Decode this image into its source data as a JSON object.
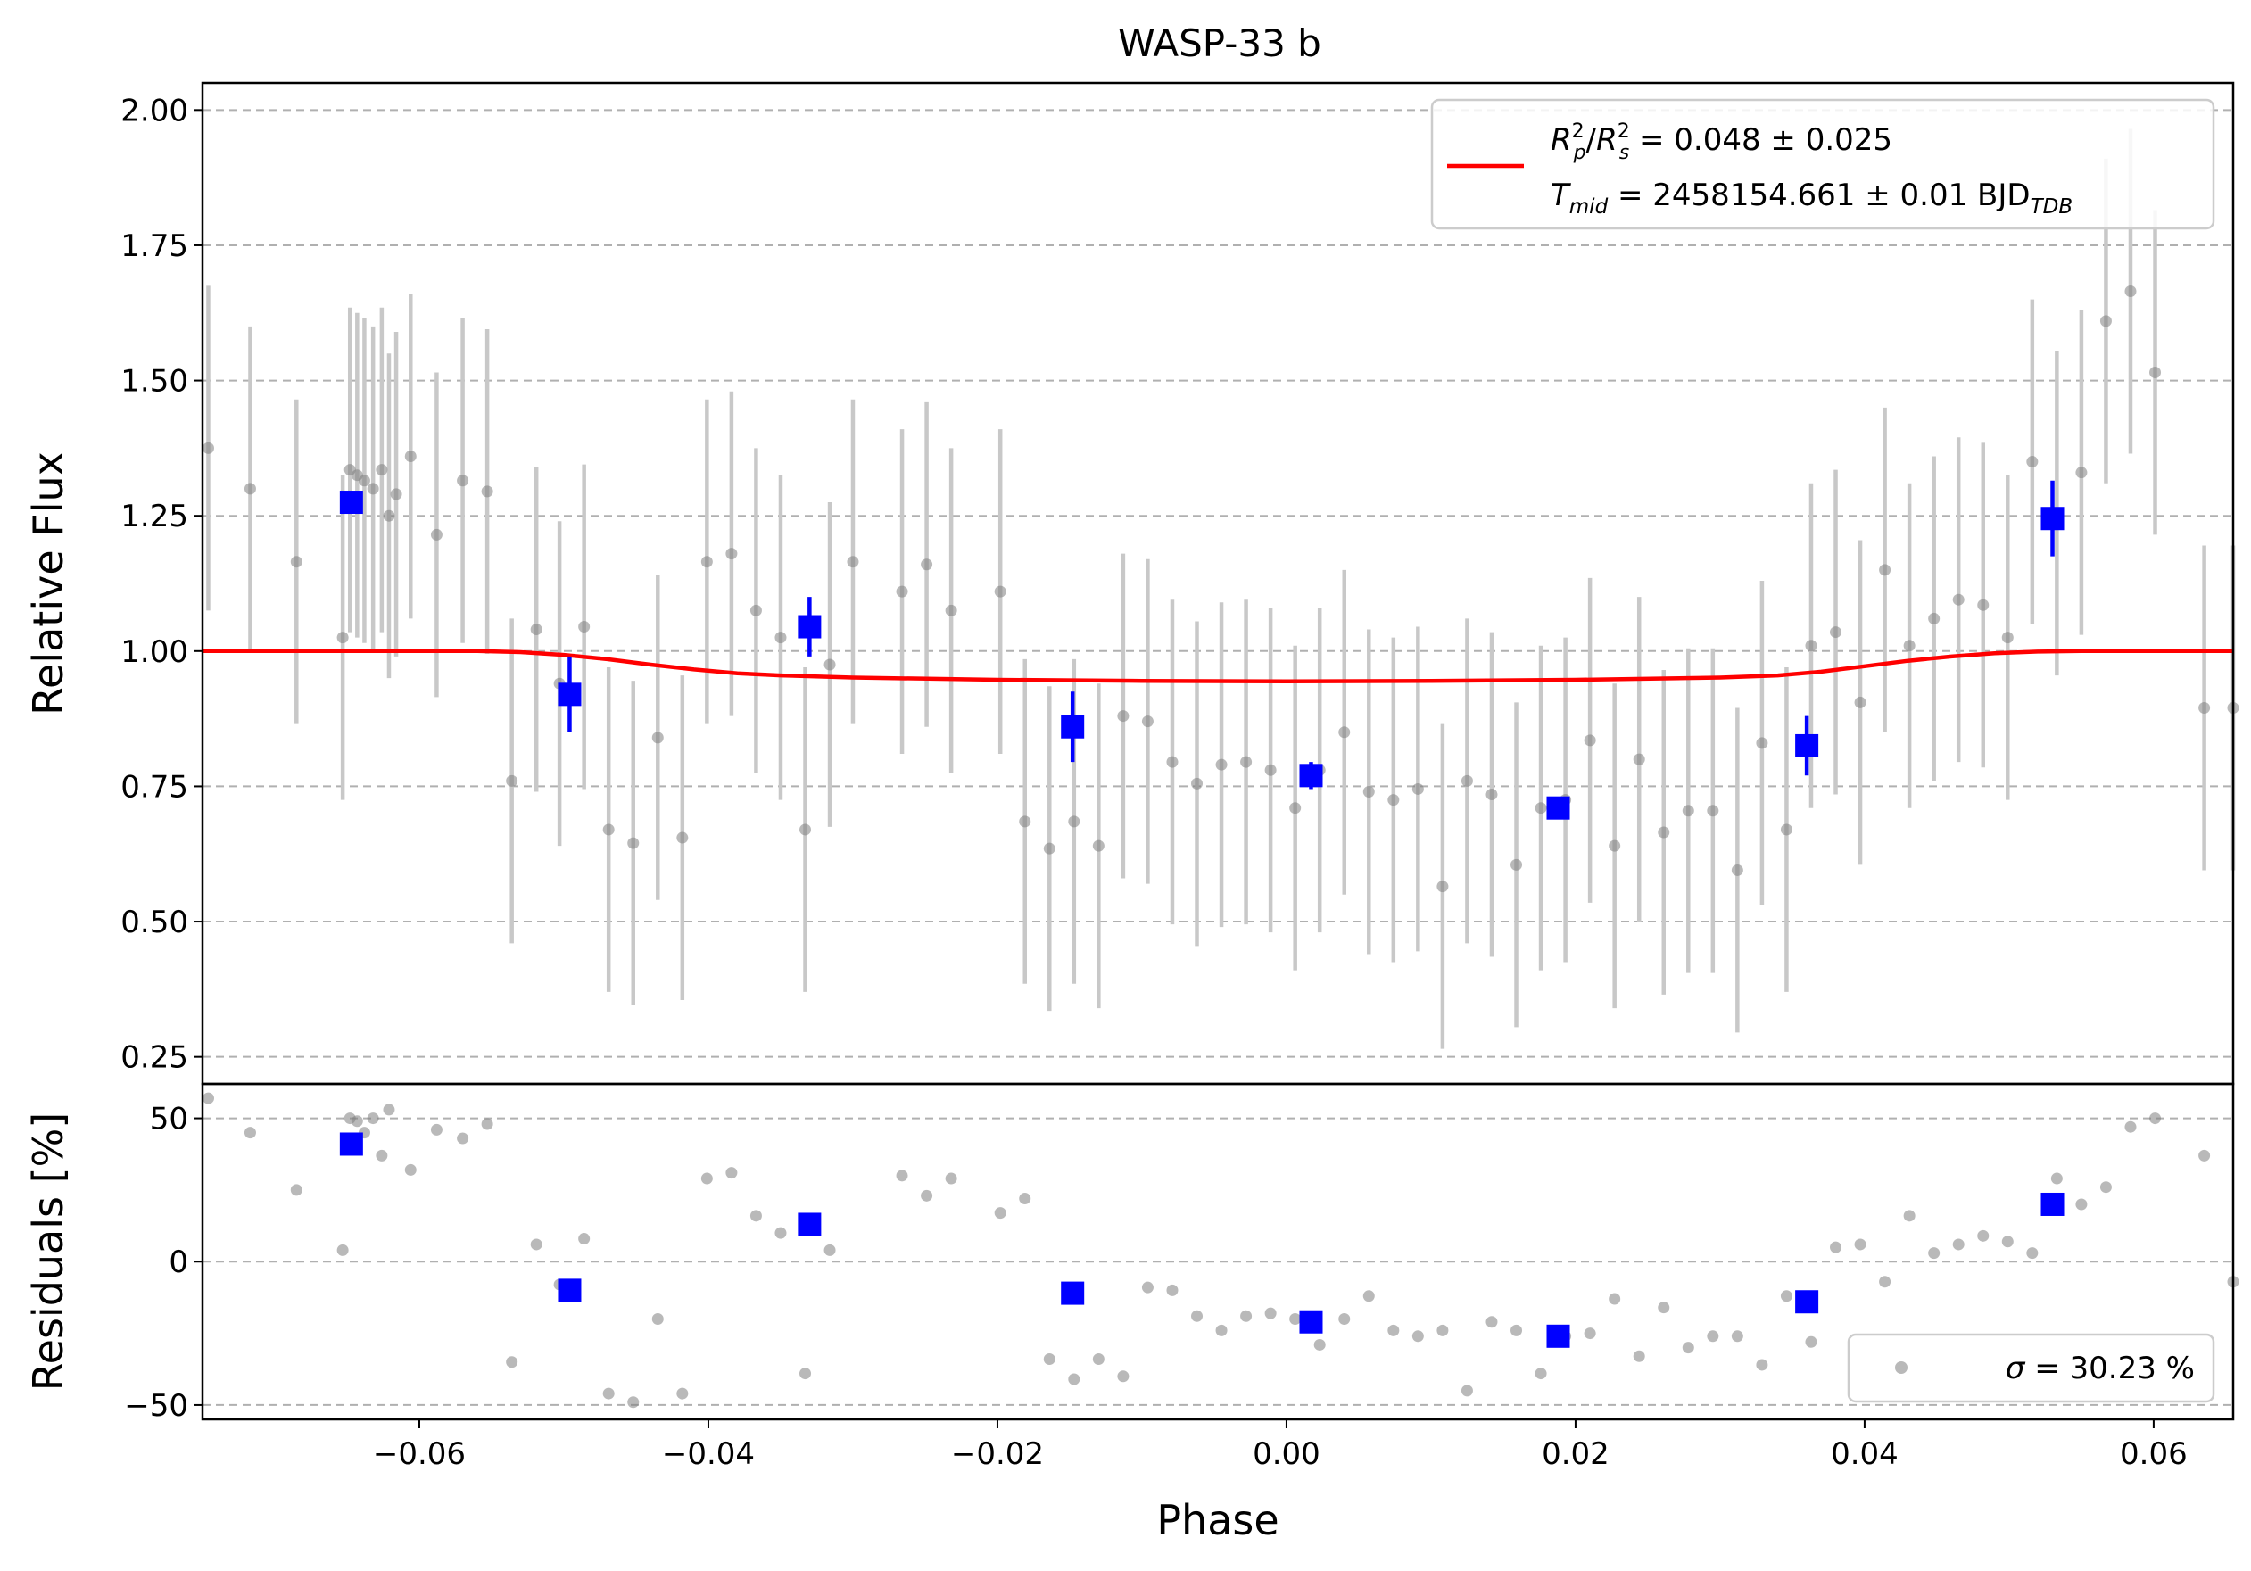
{
  "chart_data": [
    {
      "type": "scatter",
      "panel": "main",
      "title": "WASP-33 b",
      "xlabel": "",
      "ylabel": "Relative Flux",
      "xlim": [
        -0.075,
        0.0655
      ],
      "ylim": [
        0.2,
        2.05
      ],
      "grid": "y-dashed",
      "yticks": [
        0.25,
        0.5,
        0.75,
        1.0,
        1.25,
        1.5,
        1.75,
        2.0
      ],
      "ytick_labels": [
        "0.25",
        "0.50",
        "0.75",
        "1.00",
        "1.25",
        "1.50",
        "1.75",
        "2.00"
      ],
      "legend": {
        "position": "top-right",
        "line1": "R²p/R²s = 0.048 ± 0.025",
        "line2": "Tmid = 2458154.661 ± 0.01 BJDTDB",
        "line1_parts": {
          "r": "R",
          "p": "p",
          "sq": "2",
          "s": "s",
          "rest": " = 0.048 ± 0.025"
        },
        "line2_parts": {
          "t": "T",
          "mid": "mid",
          "rest": " = 2458154.661 ± 0.01 BJD",
          "tdb": "TDB"
        }
      },
      "colors": {
        "raw": "#808080",
        "errbar": "#c8c8c8",
        "binned": "#0000ff",
        "model": "#ff0000",
        "grid": "#b0b0b0"
      },
      "raw": {
        "x": [
          -0.0746,
          -0.0717,
          -0.0685,
          -0.0653,
          -0.0648,
          -0.0643,
          -0.0638,
          -0.0632,
          -0.0626,
          -0.0621,
          -0.0616,
          -0.0606,
          -0.0588,
          -0.057,
          -0.0553,
          -0.0536,
          -0.0519,
          -0.0503,
          -0.0486,
          -0.0469,
          -0.0452,
          -0.0435,
          -0.0418,
          -0.0401,
          -0.0384,
          -0.0367,
          -0.035,
          -0.0333,
          -0.0316,
          -0.03,
          -0.0266,
          -0.0249,
          -0.0232,
          -0.0198,
          -0.0181,
          -0.0164,
          -0.0147,
          -0.013,
          -0.0113,
          -0.0096,
          -0.0079,
          -0.0062,
          -0.0045,
          -0.0028,
          -0.0011,
          0.0006,
          0.0023,
          0.004,
          0.0057,
          0.0074,
          0.0091,
          0.0108,
          0.0125,
          0.0142,
          0.0159,
          0.0176,
          0.0193,
          0.021,
          0.0227,
          0.0244,
          0.0261,
          0.0278,
          0.0295,
          0.0312,
          0.0329,
          0.0346,
          0.0363,
          0.038,
          0.0397,
          0.0414,
          0.0431,
          0.0448,
          0.0465,
          0.0482,
          0.0499,
          0.0516,
          0.0533,
          0.055,
          0.0567,
          0.0584,
          0.0601,
          0.0635,
          0.0655
        ],
        "y": [
          1.375,
          1.3,
          1.165,
          1.025,
          1.335,
          1.325,
          1.315,
          1.3,
          1.335,
          1.25,
          1.29,
          1.36,
          1.215,
          1.315,
          1.295,
          0.76,
          1.04,
          0.94,
          1.045,
          0.67,
          0.645,
          0.84,
          0.655,
          1.165,
          1.18,
          1.075,
          1.025,
          0.67,
          0.975,
          1.165,
          1.11,
          1.16,
          1.075,
          1.11,
          0.685,
          0.635,
          0.685,
          0.64,
          0.88,
          0.87,
          0.795,
          0.755,
          0.79,
          0.795,
          0.78,
          0.71,
          0.78,
          0.85,
          0.74,
          0.725,
          0.745,
          0.565,
          0.76,
          0.735,
          0.605,
          0.71,
          0.725,
          0.835,
          0.64,
          0.8,
          0.665,
          0.705,
          0.705,
          0.595,
          0.83,
          0.67,
          1.01,
          1.035,
          0.905,
          1.15,
          1.01,
          1.06,
          1.095,
          1.085,
          1.025,
          1.35,
          1.255,
          1.33,
          1.61,
          1.665,
          1.515,
          0.895,
          0.895
        ],
        "err": [
          0.3,
          0.3,
          0.3,
          0.3,
          0.3,
          0.3,
          0.3,
          0.3,
          0.3,
          0.3,
          0.3,
          0.3,
          0.3,
          0.3,
          0.3,
          0.3,
          0.3,
          0.3,
          0.3,
          0.3,
          0.3,
          0.3,
          0.3,
          0.3,
          0.3,
          0.3,
          0.3,
          0.3,
          0.3,
          0.3,
          0.3,
          0.3,
          0.3,
          0.3,
          0.3,
          0.3,
          0.3,
          0.3,
          0.3,
          0.3,
          0.3,
          0.3,
          0.3,
          0.3,
          0.3,
          0.3,
          0.3,
          0.3,
          0.3,
          0.3,
          0.3,
          0.3,
          0.3,
          0.3,
          0.3,
          0.3,
          0.3,
          0.3,
          0.3,
          0.3,
          0.3,
          0.3,
          0.3,
          0.3,
          0.3,
          0.3,
          0.3,
          0.3,
          0.3,
          0.3,
          0.3,
          0.3,
          0.3,
          0.3,
          0.3,
          0.3,
          0.3,
          0.3,
          0.3,
          0.3,
          0.3,
          0.3,
          0.3
        ]
      },
      "binned": {
        "x": [
          -0.0647,
          -0.0496,
          -0.033,
          -0.0148,
          0.0017,
          0.0188,
          0.036,
          0.053
        ],
        "y": [
          1.275,
          0.92,
          1.045,
          0.86,
          0.77,
          0.71,
          0.825,
          1.245
        ],
        "err": [
          0.02,
          0.07,
          0.055,
          0.065,
          0.025,
          0.02,
          0.055,
          0.07
        ]
      },
      "model": {
        "x": [
          -0.075,
          -0.056,
          -0.053,
          -0.05,
          -0.047,
          -0.044,
          -0.041,
          -0.038,
          -0.035,
          -0.03,
          -0.02,
          -0.01,
          0.0,
          0.01,
          0.02,
          0.03,
          0.034,
          0.037,
          0.04,
          0.043,
          0.046,
          0.049,
          0.052,
          0.055,
          0.0655
        ],
        "y": [
          1.0,
          1.0,
          0.998,
          0.993,
          0.985,
          0.975,
          0.966,
          0.959,
          0.955,
          0.951,
          0.947,
          0.945,
          0.944,
          0.945,
          0.947,
          0.951,
          0.955,
          0.962,
          0.972,
          0.982,
          0.99,
          0.996,
          0.999,
          1.0,
          1.0
        ]
      }
    },
    {
      "type": "scatter",
      "panel": "residuals",
      "xlabel": "Phase",
      "ylabel": "Residuals [%]",
      "xlim": [
        -0.075,
        0.0655
      ],
      "ylim": [
        -55,
        62
      ],
      "grid": "y-dashed",
      "yticks": [
        -50,
        0,
        50
      ],
      "ytick_labels": [
        "−50",
        "0",
        "50"
      ],
      "xticks": [
        -0.06,
        -0.04,
        -0.02,
        0.0,
        0.02,
        0.04,
        0.06
      ],
      "xtick_labels": [
        "−0.06",
        "−0.04",
        "−0.02",
        "0.00",
        "0.02",
        "0.04",
        "0.06"
      ],
      "legend": {
        "position": "bottom-right",
        "sigma": "σ",
        "rest": " = 30.23 %"
      },
      "raw": {
        "x": [
          -0.0746,
          -0.0717,
          -0.0685,
          -0.0653,
          -0.0648,
          -0.0643,
          -0.0638,
          -0.0632,
          -0.0626,
          -0.0621,
          -0.0606,
          -0.0588,
          -0.057,
          -0.0553,
          -0.0536,
          -0.0519,
          -0.0503,
          -0.0486,
          -0.0469,
          -0.0452,
          -0.0435,
          -0.0418,
          -0.0401,
          -0.0384,
          -0.0367,
          -0.035,
          -0.0333,
          -0.0316,
          -0.0266,
          -0.0249,
          -0.0232,
          -0.0198,
          -0.0181,
          -0.0164,
          -0.0147,
          -0.013,
          -0.0113,
          -0.0096,
          -0.0079,
          -0.0062,
          -0.0045,
          -0.0028,
          -0.0011,
          0.0006,
          0.0023,
          0.004,
          0.0057,
          0.0074,
          0.0091,
          0.0108,
          0.0125,
          0.0142,
          0.0159,
          0.0176,
          0.0193,
          0.021,
          0.0227,
          0.0244,
          0.0261,
          0.0278,
          0.0295,
          0.0312,
          0.0329,
          0.0346,
          0.0363,
          0.038,
          0.0397,
          0.0414,
          0.0431,
          0.0448,
          0.0465,
          0.0482,
          0.0499,
          0.0516,
          0.0533,
          0.055,
          0.0567,
          0.0584,
          0.0601,
          0.0635,
          0.0655
        ],
        "y": [
          57,
          45,
          25,
          4,
          50,
          49,
          45,
          50,
          37,
          53,
          32,
          46,
          43,
          48,
          -35,
          6,
          -8,
          8,
          -46,
          -49,
          -20,
          -46,
          29,
          31,
          16,
          10,
          -39,
          4,
          30,
          23,
          29,
          17,
          22,
          -34,
          -41,
          -34,
          -40,
          -9,
          -10,
          -19,
          -24,
          -19,
          -18,
          -20,
          -29,
          -20,
          -12,
          -24,
          -26,
          -24,
          -45,
          -21,
          -24,
          -39,
          -26,
          -25,
          -13,
          -33,
          -16,
          -30,
          -26,
          -26,
          -36,
          -12,
          -28,
          5,
          6,
          -7,
          16,
          3,
          6,
          9,
          7,
          3,
          29,
          20,
          26,
          47,
          50,
          37,
          -7
        ]
      },
      "binned": {
        "x": [
          -0.0647,
          -0.0496,
          -0.033,
          -0.0148,
          0.0017,
          0.0188,
          0.036,
          0.053
        ],
        "y": [
          41,
          -10,
          13,
          -11,
          -21,
          -26,
          -14,
          20
        ]
      }
    }
  ]
}
